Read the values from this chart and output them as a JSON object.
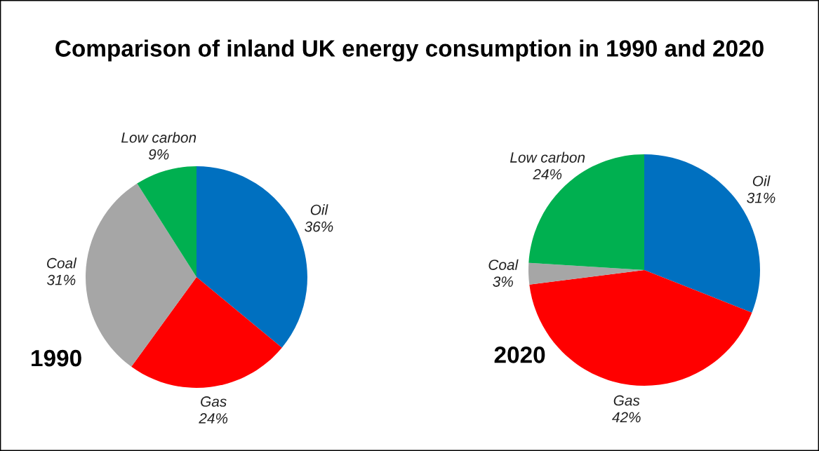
{
  "chart_data": [
    {
      "type": "pie",
      "title": "Comparison of inland UK energy consumption in 1990 and 2020",
      "subtitle": "1990",
      "categories": [
        "Oil",
        "Gas",
        "Coal",
        "Low carbon"
      ],
      "values": [
        36,
        24,
        31,
        9
      ],
      "colors": [
        "#0070c0",
        "#ff0000",
        "#a6a6a6",
        "#00b050"
      ],
      "value_labels": [
        "36%",
        "24%",
        "31%",
        "9%"
      ],
      "legend": false
    },
    {
      "type": "pie",
      "subtitle": "2020",
      "categories": [
        "Oil",
        "Gas",
        "Coal",
        "Low carbon"
      ],
      "values": [
        31,
        42,
        3,
        24
      ],
      "colors": [
        "#0070c0",
        "#ff0000",
        "#a6a6a6",
        "#00b050"
      ],
      "value_labels": [
        "31%",
        "42%",
        "3%",
        "24%"
      ],
      "legend": false
    }
  ]
}
